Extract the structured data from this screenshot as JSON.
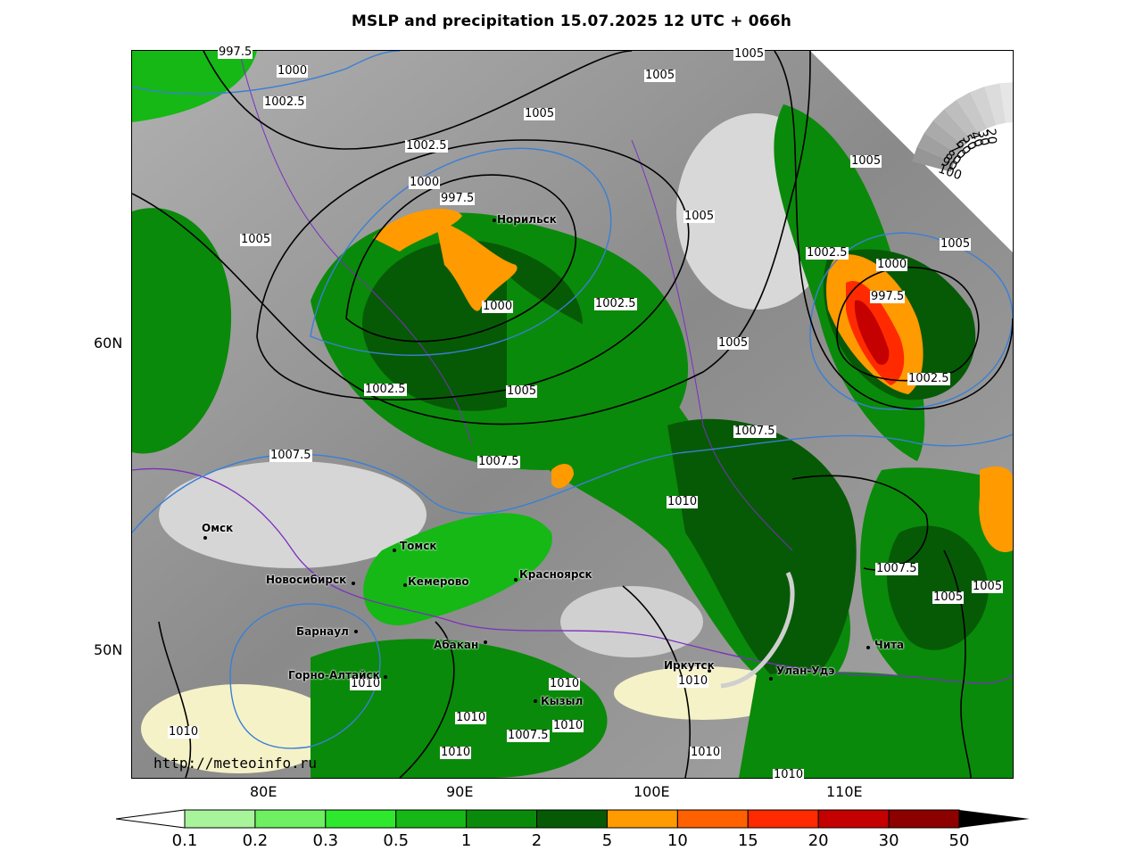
{
  "title": "MSLP and precipitation 15.07.2025 12 UTC + 066h",
  "latitude_labels": [
    "60N",
    "50N"
  ],
  "longitude_labels": [
    "80E",
    "90E",
    "100E",
    "110E"
  ],
  "isobars": [
    "997.5",
    "1000",
    "1002.5",
    "1005",
    "1000",
    "1002.5",
    "997.5",
    "1002.5",
    "1005",
    "1000",
    "1002.5",
    "1005",
    "1005",
    "1005",
    "1005",
    "1002.5",
    "1000",
    "997.5",
    "1002.5",
    "1005",
    "1005",
    "1007.5",
    "1007.5",
    "1007.5",
    "1010",
    "1007.5",
    "1005",
    "1005",
    "1010",
    "1010",
    "1010",
    "1010",
    "1010",
    "1007.5",
    "1010",
    "1010",
    "1010",
    "1010",
    "1005"
  ],
  "cities": [
    "Норильск",
    "Омск",
    "Томск",
    "Новосибирск",
    "Кемерово",
    "Красноярск",
    "Барнаул",
    "Абакан",
    "Горно-Алтайск",
    "Кызыл",
    "Иркутск",
    "Улан-Удэ",
    "Чита"
  ],
  "url": "http://meteoinfo.ru",
  "colorbar": {
    "labels": [
      "0.1",
      "0.2",
      "0.3",
      "0.5",
      "1",
      "2",
      "5",
      "10",
      "15",
      "20",
      "30",
      "50"
    ],
    "colors": [
      "#a7f49b",
      "#6fef62",
      "#2ee82e",
      "#15b815",
      "#0a8a0a",
      "#065a06",
      "#ff9a00",
      "#ff6000",
      "#ff2a00",
      "#c40000",
      "#8c0000"
    ]
  },
  "cloud_scale": {
    "labels": [
      "100",
      "90",
      "80",
      "70",
      "60",
      "50",
      "40",
      "30",
      "20"
    ]
  },
  "colors": {
    "isobar": "#000000",
    "temp_line": "#3a7fd5",
    "border": "#7b2fbf",
    "background_gray": "#8c8c8c"
  }
}
